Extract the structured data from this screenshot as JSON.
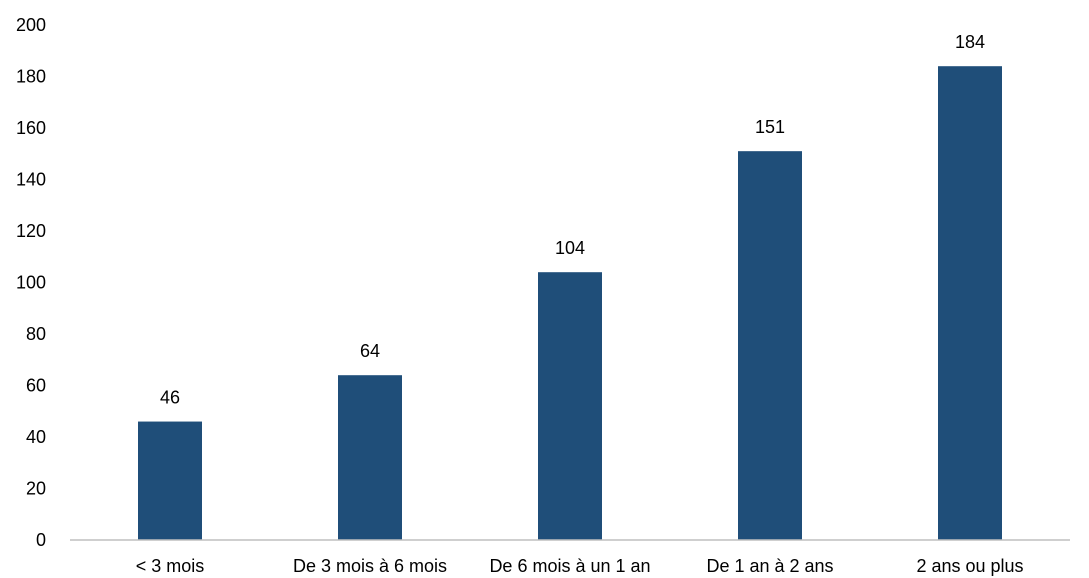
{
  "chart_data": {
    "type": "bar",
    "title": "",
    "xlabel": "",
    "ylabel": "",
    "categories": [
      "< 3 mois",
      "De 3 mois à 6 mois",
      "De 6 mois à un 1 an",
      "De 1 an à 2 ans",
      "2 ans ou plus"
    ],
    "values": [
      46,
      64,
      104,
      151,
      184
    ],
    "ylim": [
      0,
      200
    ],
    "yticks": [
      0,
      20,
      40,
      60,
      80,
      100,
      120,
      140,
      160,
      180,
      200
    ],
    "data_labels": [
      "46",
      "64",
      "104",
      "151",
      "184"
    ],
    "bar_color": "#1f4e79",
    "grid": false,
    "legend": "none"
  }
}
